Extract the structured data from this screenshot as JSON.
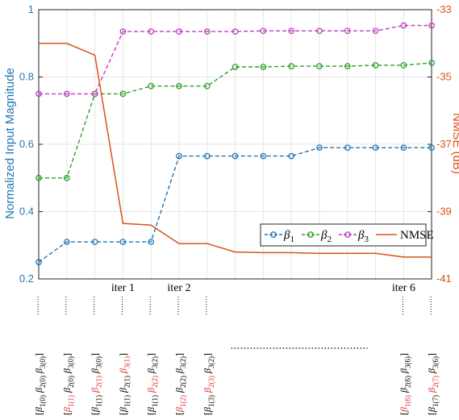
{
  "chart_data": {
    "type": "line",
    "xlabel": "",
    "ylabel": "Normalized Input Magnitude",
    "y2label": "NMSE (dB)",
    "ylim": [
      0.2,
      1
    ],
    "y2lim": [
      -41,
      -33
    ],
    "yticks": [
      "0.2",
      "0.4",
      "0.6",
      "0.8",
      "1"
    ],
    "y2ticks": [
      "-33",
      "-35",
      "-37",
      "-39",
      "-41"
    ],
    "grid": true,
    "legend_position": "lower-right",
    "colors": {
      "beta1": "#1f77b4",
      "beta2": "#2ca02c",
      "beta3": "#bf3fbf",
      "nmse": "#d95319",
      "axis_left": "#1f77b4",
      "axis_right": "#d95319",
      "highlight": "#e03030"
    },
    "x": [
      0,
      1,
      2,
      3,
      4,
      5,
      6,
      7,
      8,
      9,
      10,
      11,
      12,
      13,
      14
    ],
    "series": [
      {
        "name": "β1",
        "label_base": "β",
        "label_sub": "1",
        "axis": "left",
        "style": "dashed-circle",
        "values": [
          0.25,
          0.31,
          0.31,
          0.31,
          0.31,
          0.565,
          0.565,
          0.565,
          0.565,
          0.565,
          0.59,
          0.59,
          0.59,
          0.59,
          0.59
        ]
      },
      {
        "name": "β2",
        "label_base": "β",
        "label_sub": "2",
        "axis": "left",
        "style": "dashed-circle",
        "values": [
          0.5,
          0.5,
          0.75,
          0.75,
          0.773,
          0.773,
          0.773,
          0.83,
          0.83,
          0.832,
          0.832,
          0.832,
          0.835,
          0.835,
          0.842
        ]
      },
      {
        "name": "β3",
        "label_base": "β",
        "label_sub": "3",
        "axis": "left",
        "style": "dashed-circle",
        "values": [
          0.75,
          0.75,
          0.75,
          0.935,
          0.935,
          0.935,
          0.935,
          0.935,
          0.937,
          0.937,
          0.937,
          0.937,
          0.937,
          0.953,
          0.953
        ]
      },
      {
        "name": "NMSE",
        "label_base": "NMSE",
        "label_sub": "",
        "axis": "right",
        "style": "step",
        "values": [
          -34.0,
          -34.0,
          -34.35,
          -39.35,
          -39.4,
          -39.95,
          -39.95,
          -40.2,
          -40.22,
          -40.22,
          -40.24,
          -40.24,
          -40.24,
          -40.35,
          -40.35
        ]
      }
    ],
    "annotations": [
      {
        "text": "iter 1",
        "x": 3
      },
      {
        "text": "iter 2",
        "x": 5
      },
      {
        "text": "iter 6",
        "x": 13
      }
    ],
    "x_tuples": [
      {
        "x": 0,
        "parts": [
          {
            "b": "β",
            "s": "1(0)",
            "red": false
          },
          {
            "b": "β",
            "s": "2(0)",
            "red": false
          },
          {
            "b": "β",
            "s": "3(0)",
            "red": false
          }
        ]
      },
      {
        "x": 1,
        "parts": [
          {
            "b": "β",
            "s": "1(1)",
            "red": true
          },
          {
            "b": "β",
            "s": "2(0)",
            "red": false
          },
          {
            "b": "β",
            "s": "3(0)",
            "red": false
          }
        ]
      },
      {
        "x": 2,
        "parts": [
          {
            "b": "β",
            "s": "1(1)",
            "red": false
          },
          {
            "b": "β",
            "s": "2(1)",
            "red": true
          },
          {
            "b": "β",
            "s": "3(0)",
            "red": false
          }
        ]
      },
      {
        "x": 3,
        "parts": [
          {
            "b": "β",
            "s": "1(1)",
            "red": false
          },
          {
            "b": "β",
            "s": "2(1)",
            "red": false
          },
          {
            "b": "β",
            "s": "3(1)",
            "red": true
          }
        ]
      },
      {
        "x": 4,
        "parts": [
          {
            "b": "β",
            "s": "1(1)",
            "red": false
          },
          {
            "b": "β",
            "s": "2(2)",
            "red": true
          },
          {
            "b": "β",
            "s": "3(2)",
            "red": false
          }
        ]
      },
      {
        "x": 5,
        "parts": [
          {
            "b": "β",
            "s": "1(2)",
            "red": true
          },
          {
            "b": "β",
            "s": "2(2)",
            "red": false
          },
          {
            "b": "β",
            "s": "3(2)",
            "red": false
          }
        ]
      },
      {
        "x": 6,
        "parts": [
          {
            "b": "β",
            "s": "1(3)",
            "red": false
          },
          {
            "b": "β",
            "s": "2(3)",
            "red": true
          },
          {
            "b": "β",
            "s": "3(2)",
            "red": false
          }
        ]
      },
      {
        "x": 13,
        "parts": [
          {
            "b": "β",
            "s": "1(6)",
            "red": true
          },
          {
            "b": "β",
            "s": "2(6)",
            "red": false
          },
          {
            "b": "β",
            "s": "3(6)",
            "red": false
          }
        ]
      },
      {
        "x": 14,
        "parts": [
          {
            "b": "β",
            "s": "1(7)",
            "red": false
          },
          {
            "b": "β",
            "s": "2(7)",
            "red": true
          },
          {
            "b": "β",
            "s": "3(6)",
            "red": false
          }
        ]
      }
    ],
    "ellipsis_range": [
      7,
      12
    ]
  }
}
